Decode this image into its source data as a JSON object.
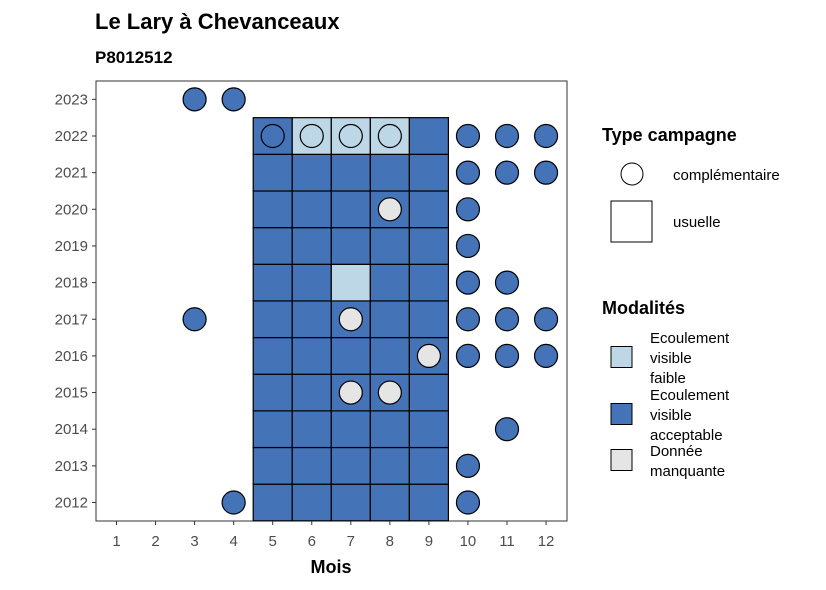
{
  "chart_data": {
    "type": "heatmap",
    "title": "Le Lary à Chevanceaux",
    "subtitle": "P8012512",
    "xlabel": "Mois",
    "ylabel": "",
    "x_ticks": [
      "1",
      "2",
      "3",
      "4",
      "5",
      "6",
      "7",
      "8",
      "9",
      "10",
      "11",
      "12"
    ],
    "y_ticks": [
      "2012",
      "2013",
      "2014",
      "2015",
      "2016",
      "2017",
      "2018",
      "2019",
      "2020",
      "2021",
      "2022",
      "2023"
    ],
    "colors": {
      "faible": "#bdd7e7",
      "acceptable": "#4473b8",
      "manquante": "#e5e5e5"
    },
    "legend_shape": {
      "title": "Type campagne",
      "items": [
        {
          "shape": "circle",
          "label": "complémentaire"
        },
        {
          "shape": "square",
          "label": "usuelle"
        }
      ]
    },
    "legend_fill": {
      "title": "Modalités",
      "items": [
        {
          "key": "faible",
          "lines": [
            "Ecoulement",
            "visible",
            "faible"
          ]
        },
        {
          "key": "acceptable",
          "lines": [
            "Ecoulement",
            "visible",
            "acceptable"
          ]
        },
        {
          "key": "manquante",
          "lines": [
            "Donnée",
            "manquante"
          ]
        }
      ]
    },
    "usuelle": [
      {
        "year": 2012,
        "values": [
          "acceptable",
          "acceptable",
          "acceptable",
          "acceptable",
          "acceptable"
        ]
      },
      {
        "year": 2013,
        "values": [
          "acceptable",
          "acceptable",
          "acceptable",
          "acceptable",
          "acceptable"
        ]
      },
      {
        "year": 2014,
        "values": [
          "acceptable",
          "acceptable",
          "acceptable",
          "acceptable",
          "acceptable"
        ]
      },
      {
        "year": 2015,
        "values": [
          "acceptable",
          "acceptable",
          "acceptable",
          "acceptable",
          "acceptable"
        ]
      },
      {
        "year": 2016,
        "values": [
          "acceptable",
          "acceptable",
          "acceptable",
          "acceptable",
          "acceptable"
        ]
      },
      {
        "year": 2017,
        "values": [
          "acceptable",
          "acceptable",
          "acceptable",
          "acceptable",
          "acceptable"
        ]
      },
      {
        "year": 2018,
        "values": [
          "acceptable",
          "acceptable",
          "faible",
          "acceptable",
          "acceptable"
        ]
      },
      {
        "year": 2019,
        "values": [
          "acceptable",
          "acceptable",
          "acceptable",
          "acceptable",
          "acceptable"
        ]
      },
      {
        "year": 2020,
        "values": [
          "acceptable",
          "acceptable",
          "acceptable",
          "acceptable",
          "acceptable"
        ]
      },
      {
        "year": 2021,
        "values": [
          "acceptable",
          "acceptable",
          "acceptable",
          "acceptable",
          "acceptable"
        ]
      },
      {
        "year": 2022,
        "values": [
          "acceptable",
          "faible",
          "faible",
          "faible",
          "acceptable"
        ]
      }
    ],
    "usuelle_months": [
      5,
      6,
      7,
      8,
      9
    ],
    "complementaire": [
      {
        "month": 3,
        "year": 2023,
        "value": "acceptable"
      },
      {
        "month": 4,
        "year": 2023,
        "value": "acceptable"
      },
      {
        "month": 5,
        "year": 2022,
        "value": "acceptable"
      },
      {
        "month": 6,
        "year": 2022,
        "value": "faible"
      },
      {
        "month": 7,
        "year": 2022,
        "value": "faible"
      },
      {
        "month": 8,
        "year": 2022,
        "value": "faible"
      },
      {
        "month": 10,
        "year": 2022,
        "value": "acceptable"
      },
      {
        "month": 11,
        "year": 2022,
        "value": "acceptable"
      },
      {
        "month": 12,
        "year": 2022,
        "value": "acceptable"
      },
      {
        "month": 10,
        "year": 2021,
        "value": "acceptable"
      },
      {
        "month": 11,
        "year": 2021,
        "value": "acceptable"
      },
      {
        "month": 12,
        "year": 2021,
        "value": "acceptable"
      },
      {
        "month": 8,
        "year": 2020,
        "value": "manquante"
      },
      {
        "month": 10,
        "year": 2020,
        "value": "acceptable"
      },
      {
        "month": 10,
        "year": 2019,
        "value": "acceptable"
      },
      {
        "month": 10,
        "year": 2018,
        "value": "acceptable"
      },
      {
        "month": 11,
        "year": 2018,
        "value": "acceptable"
      },
      {
        "month": 3,
        "year": 2017,
        "value": "acceptable"
      },
      {
        "month": 7,
        "year": 2017,
        "value": "manquante"
      },
      {
        "month": 10,
        "year": 2017,
        "value": "acceptable"
      },
      {
        "month": 11,
        "year": 2017,
        "value": "acceptable"
      },
      {
        "month": 12,
        "year": 2017,
        "value": "acceptable"
      },
      {
        "month": 9,
        "year": 2016,
        "value": "manquante"
      },
      {
        "month": 10,
        "year": 2016,
        "value": "acceptable"
      },
      {
        "month": 11,
        "year": 2016,
        "value": "acceptable"
      },
      {
        "month": 12,
        "year": 2016,
        "value": "acceptable"
      },
      {
        "month": 7,
        "year": 2015,
        "value": "manquante"
      },
      {
        "month": 8,
        "year": 2015,
        "value": "manquante"
      },
      {
        "month": 11,
        "year": 2014,
        "value": "acceptable"
      },
      {
        "month": 10,
        "year": 2013,
        "value": "acceptable"
      },
      {
        "month": 4,
        "year": 2012,
        "value": "acceptable"
      },
      {
        "month": 10,
        "year": 2012,
        "value": "acceptable"
      }
    ]
  }
}
